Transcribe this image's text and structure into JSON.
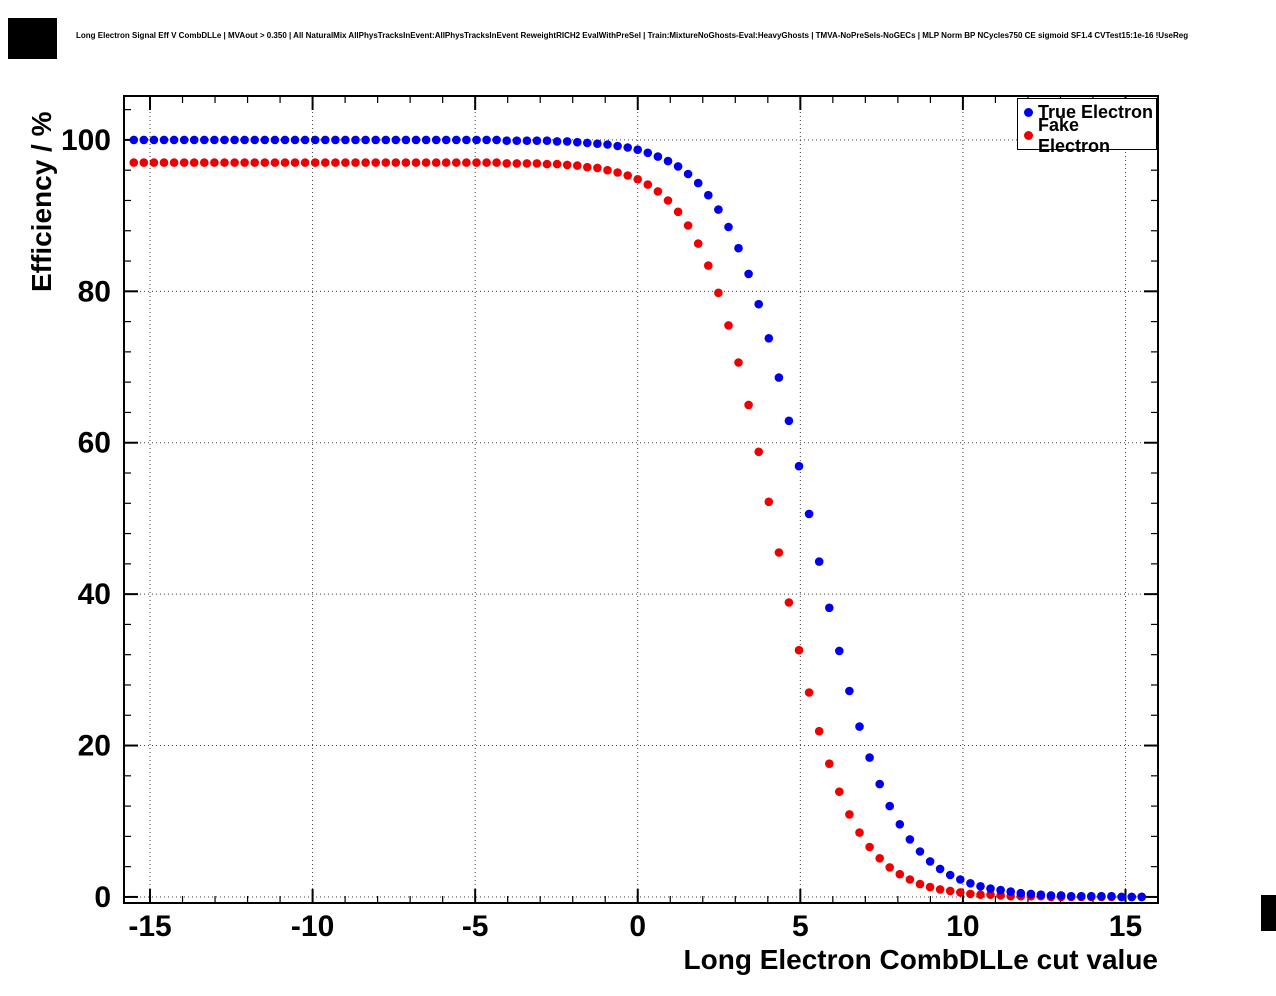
{
  "header": {
    "title": "Long Electron Signal Eff V CombDLLe | MVAout > 0.350 | All NaturalMix AllPhysTracksInEvent:AllPhysTracksInEvent ReweightRICH2 EvalWithPreSel | Train:MixtureNoGhosts-Eval:HeavyGhosts | TMVA-NoPreSels-NoGECs | MLP Norm BP NCycles750 CE sigmoid SF1.4 CVTest15:1e-16 !UseReg"
  },
  "chart_data": {
    "type": "scatter",
    "title": "Long Electron Signal Eff V CombDLLe",
    "xlabel": "Long Electron CombDLLe cut value",
    "ylabel": "Efficiency / %",
    "xlim": [
      -15.8,
      16.0
    ],
    "ylim": [
      -0.8,
      105.8
    ],
    "xticks": [
      -15,
      -10,
      -5,
      0,
      5,
      10,
      15
    ],
    "yticks": [
      0,
      20,
      40,
      60,
      80,
      100
    ],
    "x_minor_tick_step": 1,
    "y_minor_tick_step": 4,
    "grid": "dotted-major",
    "legend_position": "top-right",
    "marker": "filled-circle",
    "x": [
      -15.5,
      -15.19,
      -14.88,
      -14.57,
      -14.26,
      -13.95,
      -13.64,
      -13.33,
      -13.02,
      -12.71,
      -12.4,
      -12.09,
      -11.78,
      -11.47,
      -11.16,
      -10.85,
      -10.54,
      -10.23,
      -9.92,
      -9.61,
      -9.3,
      -8.99,
      -8.68,
      -8.37,
      -8.06,
      -7.75,
      -7.44,
      -7.13,
      -6.82,
      -6.51,
      -6.2,
      -5.89,
      -5.58,
      -5.27,
      -4.96,
      -4.65,
      -4.34,
      -4.03,
      -3.72,
      -3.41,
      -3.1,
      -2.79,
      -2.48,
      -2.17,
      -1.86,
      -1.55,
      -1.24,
      -0.93,
      -0.62,
      -0.31,
      0,
      0.31,
      0.62,
      0.93,
      1.24,
      1.55,
      1.86,
      2.17,
      2.48,
      2.79,
      3.1,
      3.41,
      3.72,
      4.03,
      4.34,
      4.65,
      4.96,
      5.27,
      5.58,
      5.89,
      6.2,
      6.51,
      6.82,
      7.13,
      7.44,
      7.75,
      8.06,
      8.37,
      8.68,
      8.99,
      9.3,
      9.61,
      9.92,
      10.23,
      10.54,
      10.85,
      11.16,
      11.47,
      11.78,
      12.09,
      12.4,
      12.71,
      13.02,
      13.33,
      13.64,
      13.95,
      14.26,
      14.57,
      14.88,
      15.19,
      15.5
    ],
    "series": [
      {
        "name": "True Electron",
        "color": "#0000ee",
        "values": [
          100,
          100,
          100,
          100,
          100,
          100,
          100,
          100,
          100,
          100,
          100,
          100,
          100,
          100,
          100,
          100,
          100,
          100,
          100,
          100,
          100,
          100,
          100,
          100,
          100,
          100,
          100,
          100,
          100,
          100,
          100,
          100,
          100,
          100,
          100,
          100,
          100,
          99.9,
          99.9,
          99.9,
          99.9,
          99.9,
          99.8,
          99.8,
          99.7,
          99.6,
          99.5,
          99.4,
          99.2,
          99.0,
          98.7,
          98.3,
          97.8,
          97.2,
          96.5,
          95.5,
          94.3,
          92.7,
          90.8,
          88.5,
          85.7,
          82.3,
          78.3,
          73.8,
          68.6,
          62.9,
          56.9,
          50.6,
          44.3,
          38.2,
          32.5,
          27.2,
          22.5,
          18.4,
          14.9,
          12.0,
          9.6,
          7.6,
          6.0,
          4.7,
          3.7,
          2.9,
          2.3,
          1.8,
          1.4,
          1.1,
          0.9,
          0.7,
          0.5,
          0.4,
          0.3,
          0.2,
          0.2,
          0.1,
          0.1,
          0.1,
          0.1,
          0.1,
          0.0,
          0.0,
          0.0
        ]
      },
      {
        "name": "Fake Electron",
        "color": "#ee0000",
        "values": [
          97,
          97,
          97,
          97,
          97,
          97,
          97,
          97,
          97,
          97,
          97,
          97,
          97,
          97,
          97,
          97,
          97,
          97,
          97,
          97,
          97,
          97,
          97,
          97,
          97,
          97,
          97,
          97,
          97,
          97,
          97,
          97,
          97,
          97,
          97,
          97,
          97,
          96.9,
          96.9,
          96.9,
          96.9,
          96.8,
          96.8,
          96.7,
          96.6,
          96.4,
          96.3,
          96.0,
          95.7,
          95.3,
          94.8,
          94.1,
          93.2,
          92.0,
          90.5,
          88.7,
          86.3,
          83.4,
          79.8,
          75.5,
          70.6,
          65.0,
          58.8,
          52.2,
          45.5,
          38.9,
          32.6,
          27.0,
          21.9,
          17.6,
          13.9,
          10.9,
          8.5,
          6.6,
          5.1,
          3.9,
          3.0,
          2.3,
          1.7,
          1.3,
          1.0,
          0.8,
          0.6,
          0.4,
          0.3,
          0.3,
          0.2,
          0.1,
          0.1,
          0.1,
          0.1,
          0.0,
          0.0,
          0.0,
          0.0,
          0.0,
          0.0,
          0.0,
          0.0,
          0.0,
          0.0
        ]
      }
    ]
  }
}
